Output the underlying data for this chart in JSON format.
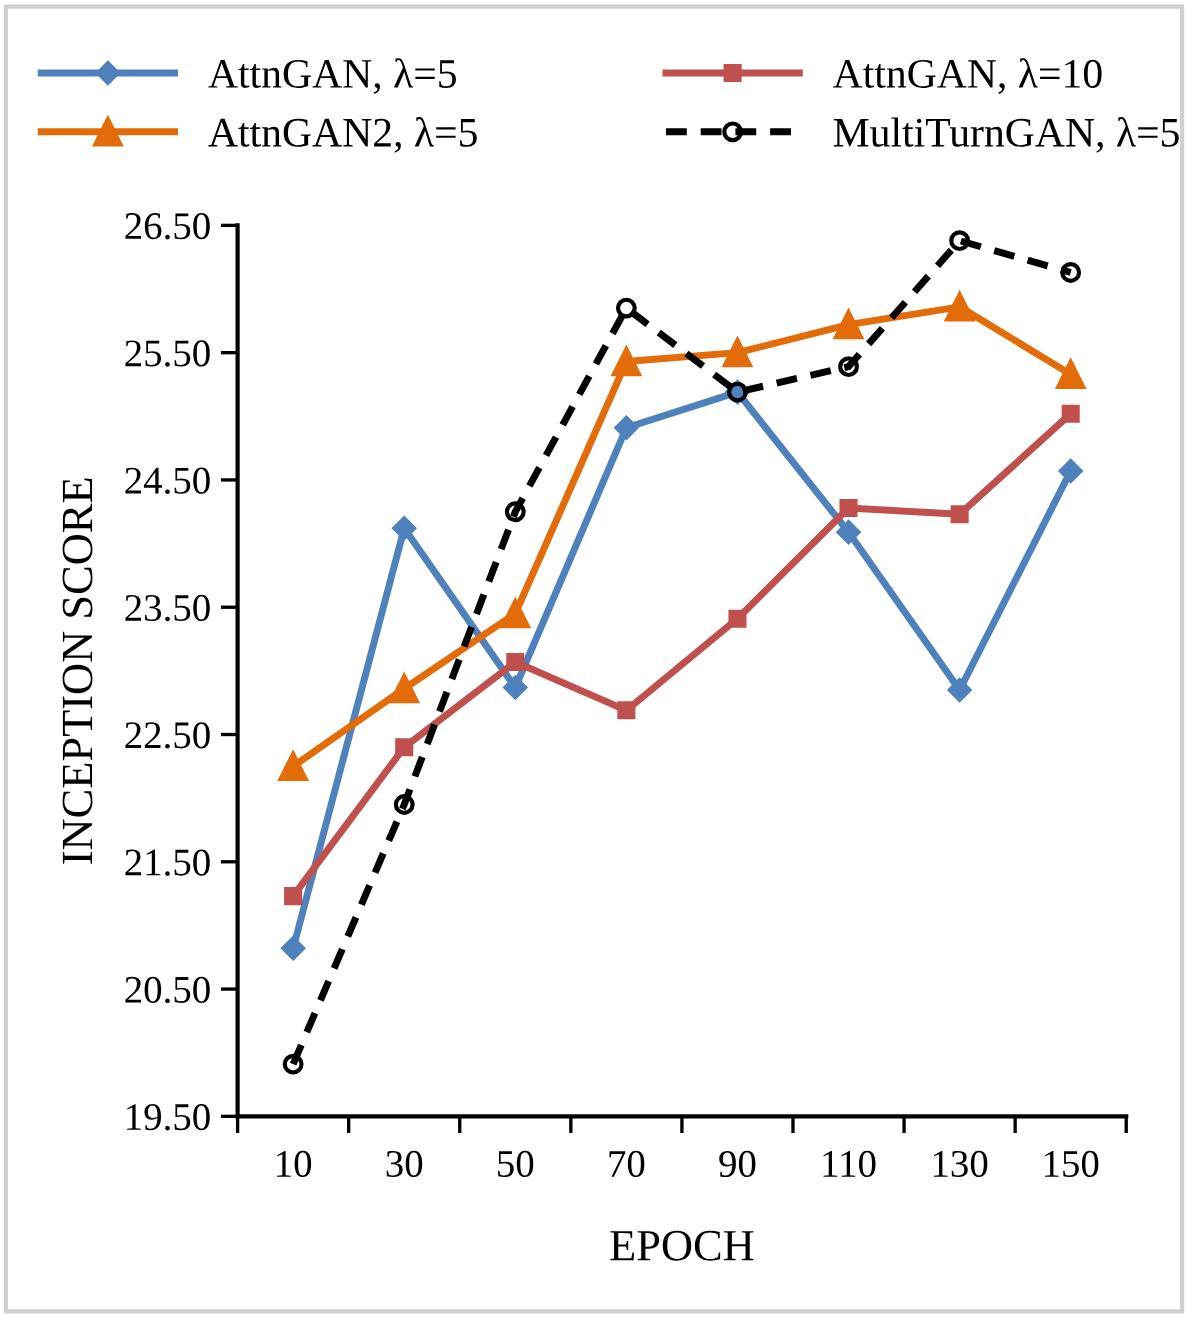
{
  "chart_data": {
    "type": "line",
    "xlabel": "EPOCH",
    "ylabel": "INCEPTION SCORE",
    "categories": [
      "10",
      "30",
      "50",
      "70",
      "90",
      "110",
      "130",
      "150"
    ],
    "series": [
      {
        "name": "AttnGAN, λ=5",
        "color": "#4f81bd",
        "marker": "diamond",
        "line_style": "solid",
        "values": [
          20.82,
          24.12,
          22.87,
          24.91,
          25.19,
          24.09,
          22.85,
          24.57
        ]
      },
      {
        "name": "AttnGAN, λ=10",
        "color": "#c0504d",
        "marker": "square",
        "line_style": "solid",
        "values": [
          21.23,
          22.4,
          23.07,
          22.69,
          23.41,
          24.28,
          24.23,
          25.02
        ]
      },
      {
        "name": "AttnGAN2, λ=5",
        "color": "#e36c09",
        "marker": "triangle",
        "line_style": "solid",
        "values": [
          22.25,
          22.86,
          23.45,
          25.43,
          25.5,
          25.72,
          25.86,
          25.33
        ]
      },
      {
        "name": "MultiTurnGAN, λ=5",
        "color": "#000000",
        "marker": "circle",
        "line_style": "dashed",
        "values": [
          19.91,
          21.95,
          24.25,
          25.85,
          25.19,
          25.39,
          26.38,
          26.13
        ]
      }
    ],
    "ylim": [
      19.5,
      26.5
    ],
    "yticks": [
      {
        "value": 19.5,
        "label": "19.50"
      },
      {
        "value": 20.5,
        "label": "20.50"
      },
      {
        "value": 21.5,
        "label": "21.50"
      },
      {
        "value": 22.5,
        "label": "22.50"
      },
      {
        "value": 23.5,
        "label": "23.50"
      },
      {
        "value": 24.5,
        "label": "24.50"
      },
      {
        "value": 25.5,
        "label": "25.50"
      },
      {
        "value": 26.5,
        "label": "26.50"
      }
    ],
    "grid": false,
    "legend": "top"
  }
}
